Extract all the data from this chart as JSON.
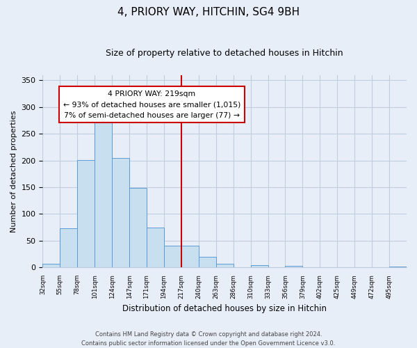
{
  "title": "4, PRIORY WAY, HITCHIN, SG4 9BH",
  "subtitle": "Size of property relative to detached houses in Hitchin",
  "xlabel": "Distribution of detached houses by size in Hitchin",
  "ylabel": "Number of detached properties",
  "tick_labels": [
    "32sqm",
    "55sqm",
    "78sqm",
    "101sqm",
    "124sqm",
    "147sqm",
    "171sqm",
    "194sqm",
    "217sqm",
    "240sqm",
    "263sqm",
    "286sqm",
    "310sqm",
    "333sqm",
    "356sqm",
    "379sqm",
    "402sqm",
    "425sqm",
    "449sqm",
    "472sqm",
    "495sqm"
  ],
  "values": [
    6,
    73,
    201,
    273,
    205,
    149,
    74,
    41,
    41,
    20,
    6,
    0,
    4,
    0,
    3,
    0,
    0,
    0,
    0,
    0,
    2
  ],
  "bar_color": "#c8dff0",
  "bar_edge_color": "#5b9bd5",
  "vline_index": 8,
  "vline_color": "#cc0000",
  "annotation_title": "4 PRIORY WAY: 219sqm",
  "annotation_line1": "← 93% of detached houses are smaller (1,015)",
  "annotation_line2": "7% of semi-detached houses are larger (77) →",
  "annotation_box_facecolor": "#ffffff",
  "annotation_box_edgecolor": "#cc0000",
  "footer_line1": "Contains HM Land Registry data © Crown copyright and database right 2024.",
  "footer_line2": "Contains public sector information licensed under the Open Government Licence v3.0.",
  "ylim": [
    0,
    360
  ],
  "background_color": "#e8eef8",
  "grid_color": "#c0cce0",
  "title_fontsize": 11,
  "subtitle_fontsize": 9
}
